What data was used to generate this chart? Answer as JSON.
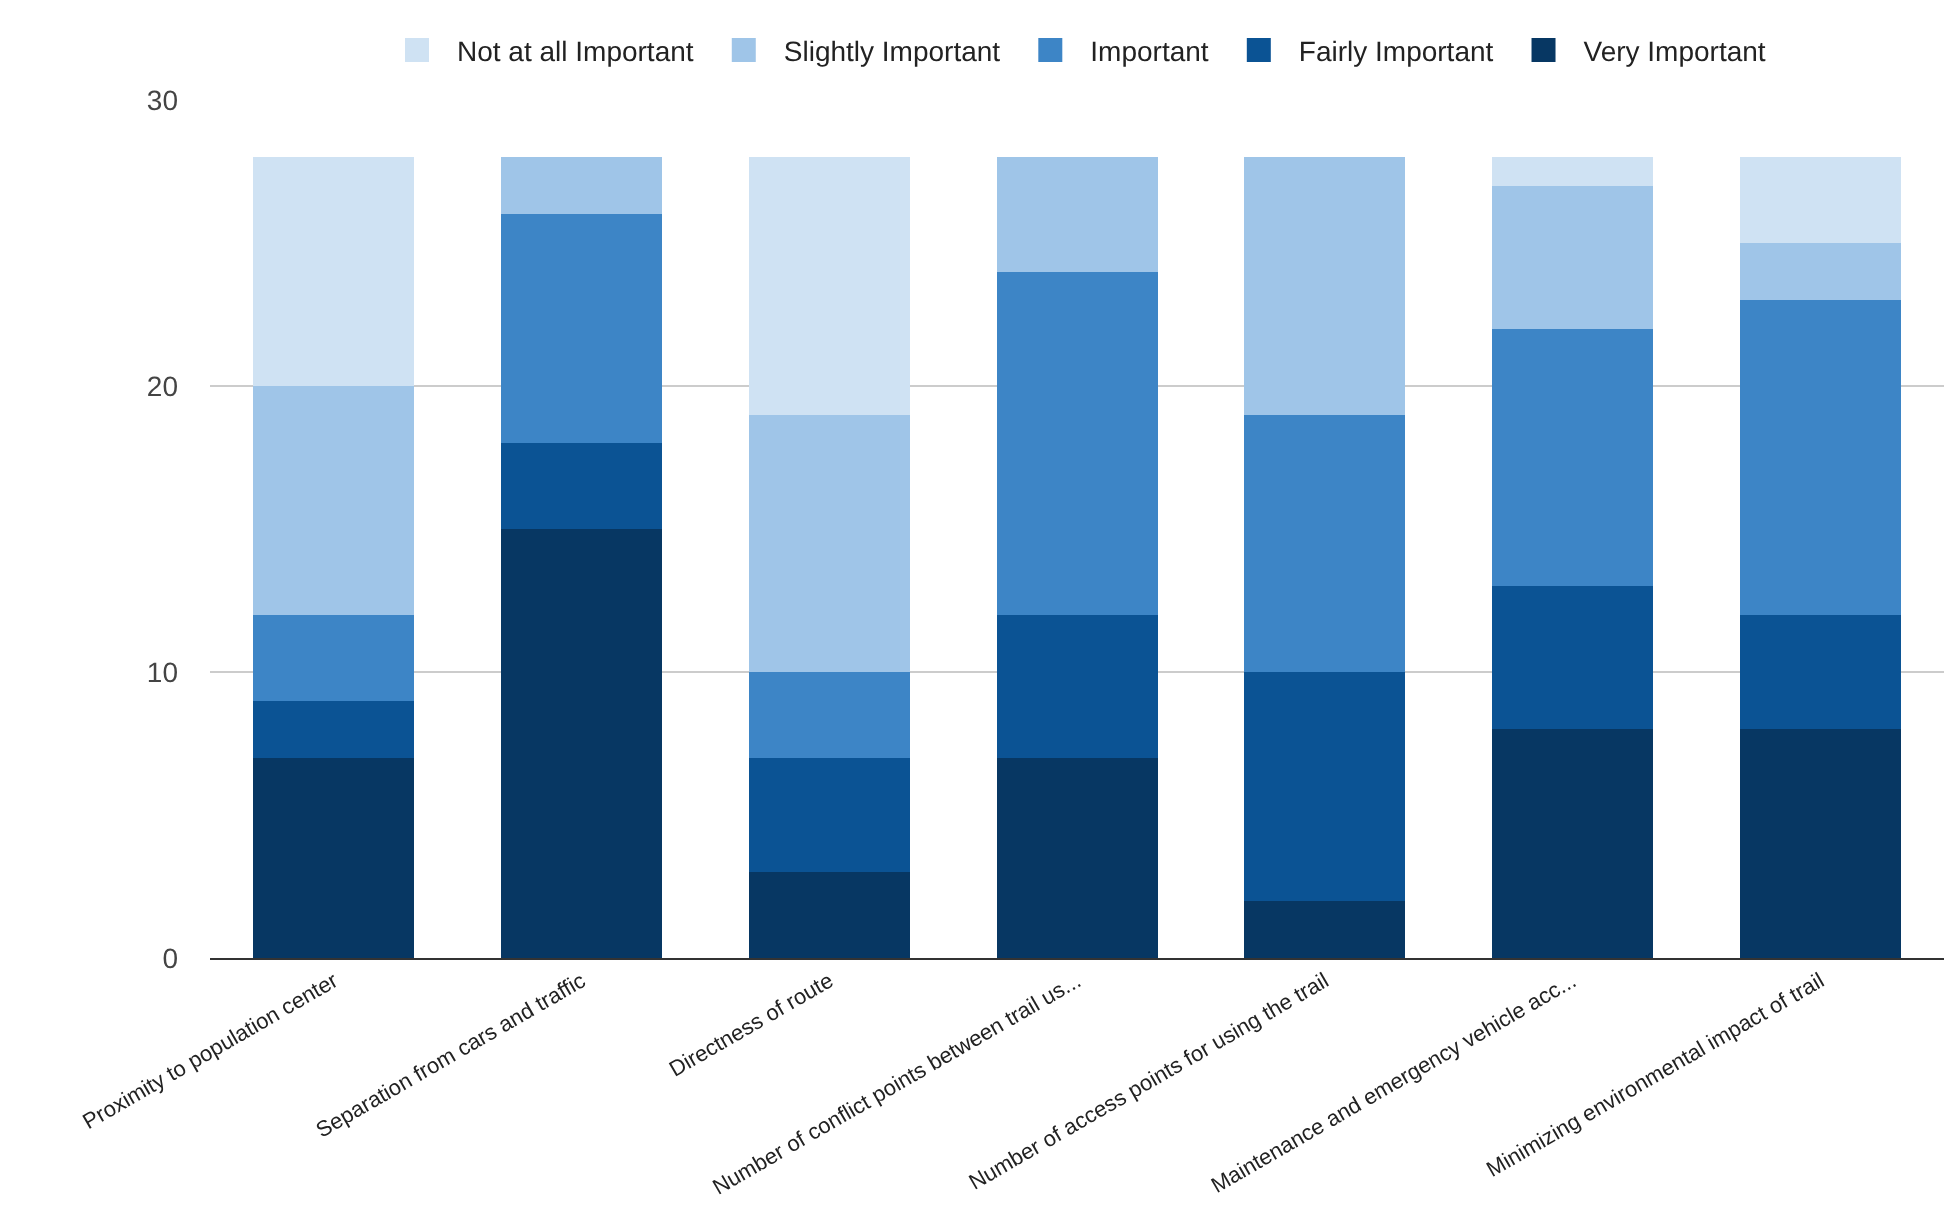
{
  "chart_data": {
    "type": "bar",
    "stacked": true,
    "categories": [
      "Proximity to population center",
      "Separation from cars and traffic",
      "Directness of route",
      "Number of conflict points between trail us...",
      "Number of access points for using the trail",
      "Maintenance and emergency vehicle acc...",
      "Minimizing environmental impact of trail"
    ],
    "series": [
      {
        "name": "Very Important",
        "color": "#073763",
        "values": [
          7,
          15,
          3,
          7,
          2,
          8,
          8
        ]
      },
      {
        "name": "Fairly Important",
        "color": "#0b5394",
        "values": [
          2,
          3,
          4,
          5,
          8,
          5,
          4
        ]
      },
      {
        "name": "Important",
        "color": "#3d85c6",
        "values": [
          3,
          8,
          3,
          12,
          9,
          9,
          11
        ]
      },
      {
        "name": "Slightly Important",
        "color": "#9fc5e8",
        "values": [
          8,
          2,
          9,
          4,
          9,
          5,
          2
        ]
      },
      {
        "name": "Not at all Important",
        "color": "#cfe2f3",
        "values": [
          8,
          0,
          9,
          0,
          0,
          1,
          3
        ]
      }
    ],
    "ylim": [
      0,
      30
    ],
    "yticks": [
      0,
      10,
      20,
      30
    ],
    "grid": "y",
    "legend": "top"
  }
}
